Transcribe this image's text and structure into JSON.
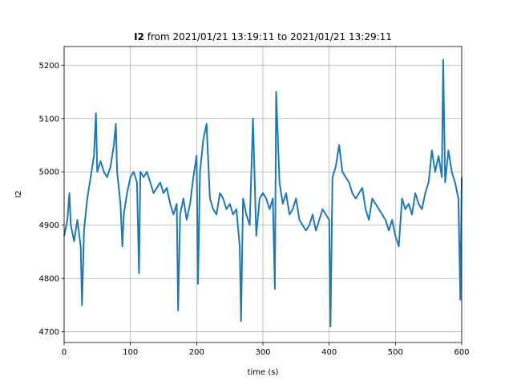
{
  "chart_data": {
    "type": "line",
    "title": {
      "bold": "I2",
      "rest": " from 2021/01/21 13:19:11 to 2021/01/21 13:29:11"
    },
    "xlabel": "time (s)",
    "ylabel": "I2",
    "xlim": [
      0,
      600
    ],
    "ylim": [
      4680,
      5235
    ],
    "x_ticks": [
      0,
      100,
      200,
      300,
      400,
      500,
      600
    ],
    "y_ticks": [
      4700,
      4800,
      4900,
      5000,
      5100,
      5200
    ],
    "grid": true,
    "series": [
      {
        "color": "#1f77b4",
        "x": [
          0,
          5,
          8,
          10,
          15,
          20,
          25,
          27,
          30,
          35,
          40,
          45,
          48,
          50,
          55,
          60,
          65,
          70,
          75,
          78,
          80,
          85,
          88,
          90,
          95,
          100,
          105,
          110,
          113,
          115,
          120,
          125,
          130,
          135,
          140,
          145,
          150,
          155,
          160,
          165,
          170,
          172,
          175,
          180,
          185,
          190,
          195,
          200,
          202,
          205,
          210,
          215,
          220,
          225,
          230,
          235,
          240,
          245,
          250,
          255,
          260,
          265,
          267,
          270,
          275,
          280,
          285,
          290,
          295,
          300,
          305,
          310,
          315,
          318,
          320,
          325,
          330,
          335,
          340,
          345,
          350,
          355,
          360,
          365,
          370,
          375,
          380,
          385,
          390,
          395,
          400,
          402,
          405,
          410,
          415,
          420,
          425,
          430,
          435,
          440,
          445,
          450,
          455,
          460,
          465,
          470,
          475,
          480,
          485,
          490,
          495,
          500,
          505,
          510,
          515,
          520,
          525,
          530,
          535,
          540,
          545,
          550,
          555,
          560,
          565,
          570,
          572,
          575,
          580,
          585,
          590,
          595,
          598,
          600
        ],
        "y": [
          4880,
          4910,
          4960,
          4900,
          4870,
          4910,
          4860,
          4750,
          4890,
          4950,
          4990,
          5030,
          5110,
          5000,
          5020,
          5000,
          4990,
          5010,
          5050,
          5090,
          5000,
          4940,
          4860,
          4920,
          4960,
          4990,
          5000,
          4980,
          4810,
          5000,
          4990,
          5000,
          4980,
          4960,
          4970,
          4980,
          4960,
          4970,
          4940,
          4920,
          4940,
          4740,
          4920,
          4950,
          4910,
          4940,
          4990,
          5030,
          4790,
          5000,
          5060,
          5090,
          4950,
          4930,
          4920,
          4960,
          4950,
          4930,
          4940,
          4920,
          4930,
          4860,
          4720,
          4950,
          4920,
          4900,
          5100,
          4880,
          4950,
          4960,
          4950,
          4930,
          4950,
          4780,
          5150,
          4980,
          4940,
          4960,
          4920,
          4930,
          4950,
          4910,
          4900,
          4890,
          4900,
          4920,
          4890,
          4910,
          4930,
          4920,
          4910,
          4710,
          4990,
          5010,
          5050,
          5000,
          4990,
          4980,
          4960,
          4950,
          4960,
          4970,
          4930,
          4910,
          4950,
          4940,
          4930,
          4920,
          4910,
          4890,
          4910,
          4880,
          4860,
          4950,
          4930,
          4940,
          4920,
          4960,
          4940,
          4930,
          4960,
          4980,
          5040,
          5000,
          5030,
          4990,
          5210,
          4980,
          5040,
          5000,
          4980,
          4950,
          4760,
          4990
        ]
      }
    ]
  }
}
